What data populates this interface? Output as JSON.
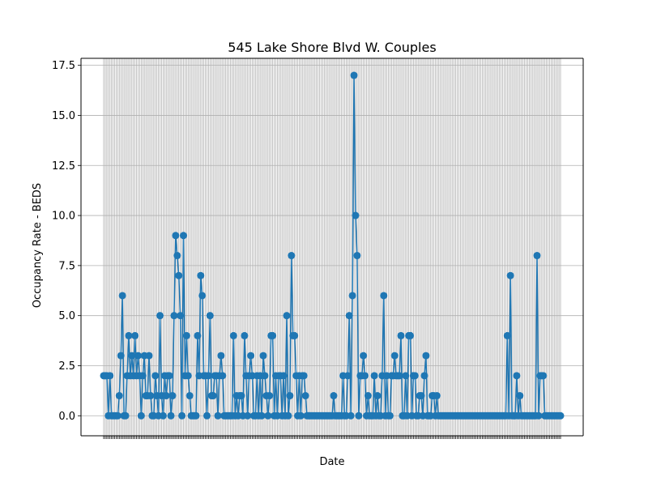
{
  "chart_data": {
    "type": "line",
    "title": "545 Lake Shore Blvd W. Couples",
    "xlabel": "Date",
    "ylabel": "Occupancy Rate - BEDS",
    "ylim": [
      -1.0,
      17.85
    ],
    "yticks": [
      0.0,
      2.5,
      5.0,
      7.5,
      10.0,
      12.5,
      15.0,
      17.5
    ],
    "ytick_labels": [
      "0.0",
      "2.5",
      "5.0",
      "7.5",
      "10.0",
      "12.5",
      "15.0",
      "17.5"
    ],
    "grid": true,
    "marker": "circle",
    "series": [
      {
        "color": "#1f77b4",
        "values": [
          2,
          2,
          2,
          0,
          2,
          0,
          0,
          0,
          0,
          0,
          1,
          3,
          6,
          0,
          0,
          2,
          4,
          2,
          3,
          2,
          4,
          2,
          3,
          2,
          0,
          2,
          3,
          1,
          1,
          3,
          1,
          0,
          0,
          2,
          1,
          0,
          5,
          1,
          0,
          2,
          1,
          2,
          2,
          0,
          1,
          5,
          9,
          8,
          7,
          5,
          0,
          9,
          2,
          4,
          2,
          1,
          0,
          0,
          0,
          0,
          4,
          2,
          7,
          6,
          2,
          2,
          0,
          2,
          5,
          1,
          1,
          2,
          2,
          0,
          2,
          3,
          2,
          0,
          0,
          0,
          0,
          0,
          0,
          4,
          0,
          1,
          0,
          1,
          1,
          0,
          4,
          2,
          0,
          2,
          3,
          2,
          0,
          0,
          2,
          0,
          2,
          0,
          3,
          2,
          1,
          0,
          1,
          4,
          4,
          0,
          2,
          0,
          2,
          2,
          0,
          2,
          0,
          5,
          0,
          1,
          8,
          4,
          4,
          2,
          0,
          2,
          0,
          2,
          2,
          1,
          0,
          0,
          0,
          0,
          0,
          0,
          0,
          0,
          0,
          0,
          0,
          0,
          0,
          0,
          0,
          0,
          0,
          1,
          0,
          0,
          0,
          0,
          0,
          2,
          0,
          0,
          2,
          5,
          0,
          6,
          17,
          10,
          8,
          0,
          2,
          2,
          3,
          2,
          0,
          1,
          0,
          0,
          0,
          2,
          0,
          1,
          0,
          0,
          2,
          6,
          0,
          2,
          0,
          0,
          2,
          2,
          3,
          2,
          2,
          2,
          4,
          0,
          0,
          2,
          0,
          4,
          4,
          0,
          2,
          2,
          0,
          0,
          1,
          1,
          0,
          2,
          3,
          0,
          0,
          0,
          1,
          1,
          0,
          1,
          0,
          0,
          0,
          0,
          0,
          0,
          0,
          0,
          0,
          0,
          0,
          0,
          0,
          0,
          0,
          0,
          0,
          0,
          0,
          0,
          0,
          0,
          0,
          0,
          0,
          0,
          0,
          0,
          0,
          0,
          0,
          0,
          0,
          0,
          0,
          0,
          0,
          0,
          0,
          0,
          0,
          0,
          0,
          0,
          4,
          0,
          7,
          0,
          0,
          0,
          2,
          0,
          1,
          0,
          0,
          0,
          0,
          0,
          0,
          0,
          0,
          0,
          0,
          8,
          0,
          2,
          2,
          2,
          0,
          0,
          0,
          0,
          0,
          0,
          0,
          0,
          0,
          0,
          0
        ]
      }
    ]
  }
}
